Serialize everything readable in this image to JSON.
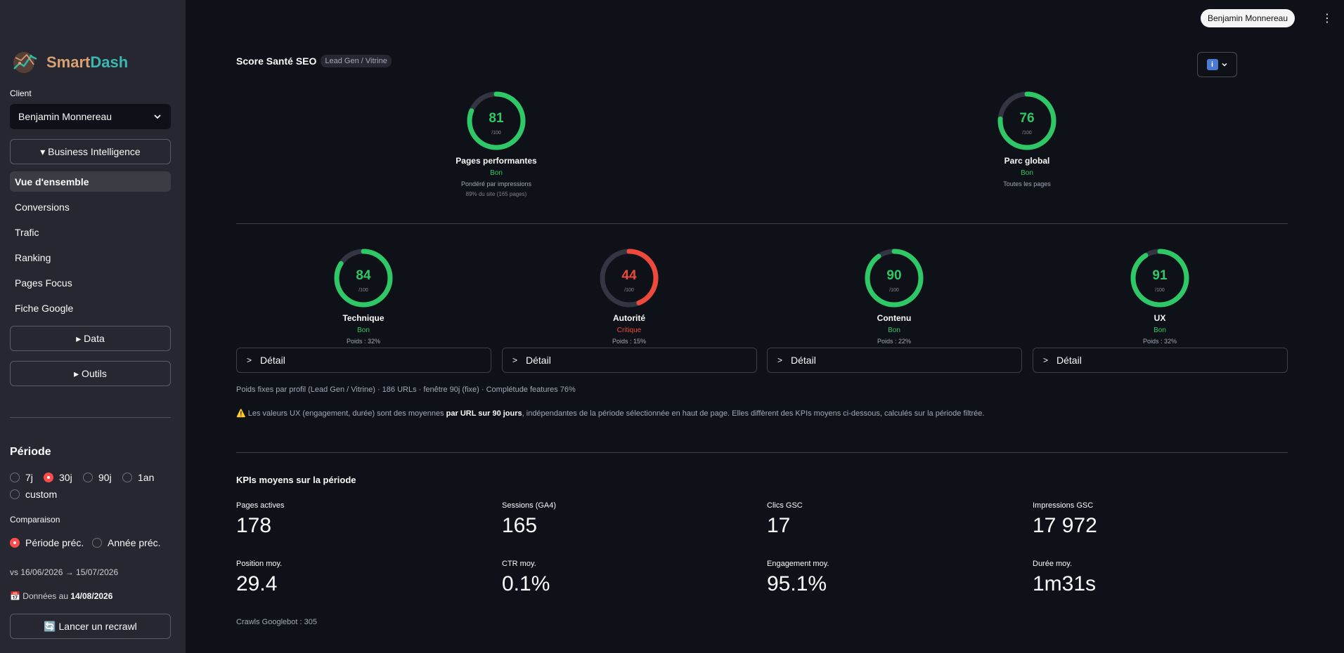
{
  "header": {
    "user_button": "Benjamin Monnereau",
    "more_glyph": "⋮"
  },
  "sidebar": {
    "logo_smart": "Smart",
    "logo_dash": "Dash",
    "client_label": "Client",
    "client_value": "Benjamin Monnereau",
    "bi_button": "▾ Business Intelligence",
    "nav": [
      "Vue d'ensemble",
      "Conversions",
      "Trafic",
      "Ranking",
      "Pages Focus",
      "Fiche Google"
    ],
    "data_button": "▸ Data",
    "tools_button": "▸ Outils",
    "period_heading": "Période",
    "period_options": [
      "7j",
      "30j",
      "90j",
      "1an",
      "custom"
    ],
    "period_selected": "30j",
    "comparison_label": "Comparaison",
    "comparison_options": [
      "Période préc.",
      "Année préc."
    ],
    "comparison_selected": "Période préc.",
    "vs_range": "vs 16/06/2026 → 15/07/2026",
    "data_date_prefix": "📅 Données au ",
    "data_date": "14/08/2026",
    "recrawl_button": "🔄 Lancer un recrawl"
  },
  "main": {
    "title": "Score Santé SEO",
    "profile_tag": "Lead Gen / Vitrine",
    "info_glyph": "ℹ️",
    "top_gauges": [
      {
        "score": 81,
        "max": "/100",
        "name": "Pages performantes",
        "status": "Bon",
        "color": "#2ec866",
        "note": "Pondéré par impressions",
        "note2": "89% du site (165 pages)"
      },
      {
        "score": 76,
        "max": "/100",
        "name": "Parc global",
        "status": "Bon",
        "color": "#2ec866",
        "note": "Toutes les pages",
        "note2": ""
      }
    ],
    "sub_gauges": [
      {
        "score": 84,
        "max": "/100",
        "name": "Technique",
        "status": "Bon",
        "color": "#2ec866",
        "weight": "Poids : 32%"
      },
      {
        "score": 44,
        "max": "/100",
        "name": "Autorité",
        "status": "Critique",
        "color": "#ee4a3c",
        "weight": "Poids : 15%"
      },
      {
        "score": 90,
        "max": "/100",
        "name": "Contenu",
        "status": "Bon",
        "color": "#2ec866",
        "weight": "Poids : 22%"
      },
      {
        "score": 91,
        "max": "/100",
        "name": "UX",
        "status": "Bon",
        "color": "#2ec866",
        "weight": "Poids : 32%"
      }
    ],
    "detail_label": "Détail",
    "caption": "Poids fixes par profil (Lead Gen / Vitrine) · 186 URLs · fenêtre 90j (fixe) · Complétude features 76%",
    "warning_prefix": "⚠️ Les valeurs UX (engagement, durée) sont des moyennes ",
    "warning_bold": "par URL sur 90 jours",
    "warning_suffix": ", indépendantes de la période sélectionnée en haut de page. Elles diffèrent des KPIs moyens ci-dessous, calculés sur la période filtrée.",
    "kpi_title": "KPIs moyens sur la période",
    "kpis": [
      {
        "label": "Pages actives",
        "value": "178"
      },
      {
        "label": "Sessions (GA4)",
        "value": "165"
      },
      {
        "label": "Clics GSC",
        "value": "17"
      },
      {
        "label": "Impressions GSC",
        "value": "17 972"
      },
      {
        "label": "Position moy.",
        "value": "29.4"
      },
      {
        "label": "CTR moy.",
        "value": "0.1%"
      },
      {
        "label": "Engagement moy.",
        "value": "95.1%"
      },
      {
        "label": "Durée moy.",
        "value": "1m31s"
      }
    ],
    "crawls": "Crawls Googlebot : 305"
  }
}
